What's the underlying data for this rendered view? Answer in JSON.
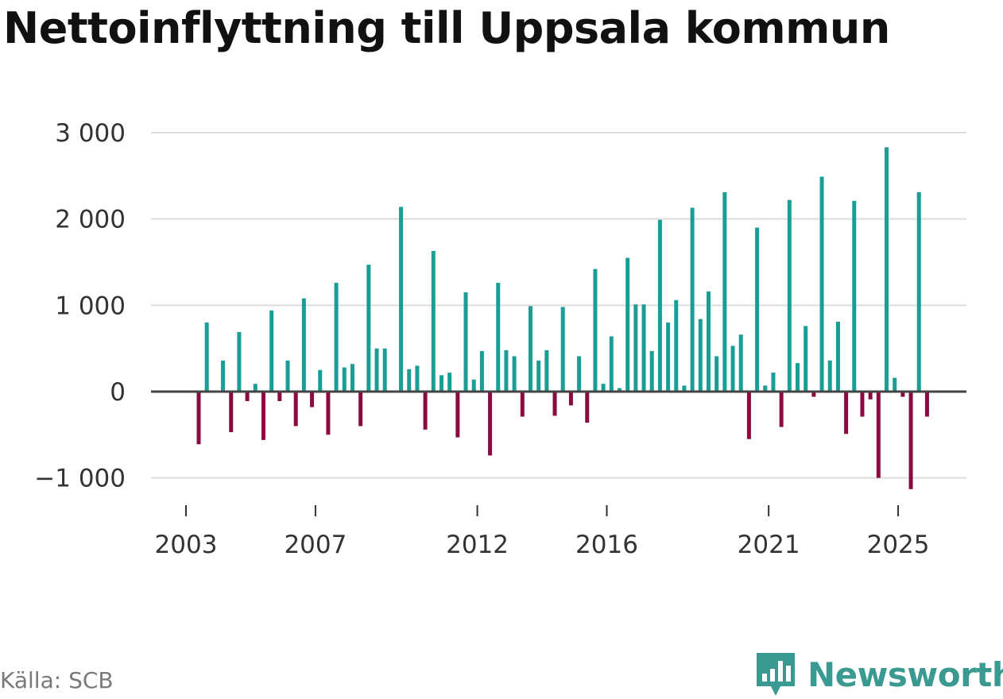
{
  "title": "Nettoinflyttning till Uppsala kommun",
  "source": "Källa: SCB",
  "brand": "Newsworthy",
  "colors": {
    "positive": "#1a9d95",
    "negative": "#8b0a42",
    "grid": "#dddddd",
    "zero": "#444444"
  },
  "chart_data": {
    "type": "bar",
    "title": "Nettoinflyttning till Uppsala kommun",
    "xlabel": "",
    "ylabel": "",
    "ylim": [
      -1200,
      3000
    ],
    "yticks": [
      -1000,
      0,
      1000,
      2000,
      3000
    ],
    "ytick_labels": [
      "−1 000",
      "0",
      "1 000",
      "2 000",
      "3 000"
    ],
    "xticks": [
      2003,
      2007,
      2012,
      2016,
      2021,
      2025
    ],
    "xtick_labels": [
      "2003",
      "2007",
      "2012",
      "2016",
      "2021",
      "2025"
    ],
    "x_start": 2003.0,
    "x_step": 0.25,
    "series": [
      {
        "name": "Nettoinflyttning",
        "values": [
          -610,
          800,
          0,
          360,
          -470,
          690,
          -110,
          90,
          -560,
          940,
          -110,
          360,
          -400,
          1080,
          -180,
          250,
          -500,
          1260,
          280,
          320,
          -400,
          1470,
          500,
          500,
          0,
          2140,
          260,
          300,
          -440,
          1630,
          190,
          220,
          -530,
          1150,
          140,
          470,
          -740,
          1260,
          480,
          410,
          -290,
          990,
          360,
          480,
          -280,
          980,
          -160,
          410,
          -360,
          1420,
          90,
          640,
          40,
          1550,
          1010,
          1010,
          470,
          1990,
          800,
          1060,
          70,
          2130,
          840,
          1160,
          410,
          2310,
          530,
          660,
          -550,
          1900,
          70,
          220,
          -410,
          2220,
          330,
          760,
          -60,
          2490,
          360,
          810,
          -490,
          2210,
          -290,
          -90,
          -1000,
          2830,
          160,
          -60,
          -1130,
          2310,
          -290
        ]
      }
    ]
  }
}
